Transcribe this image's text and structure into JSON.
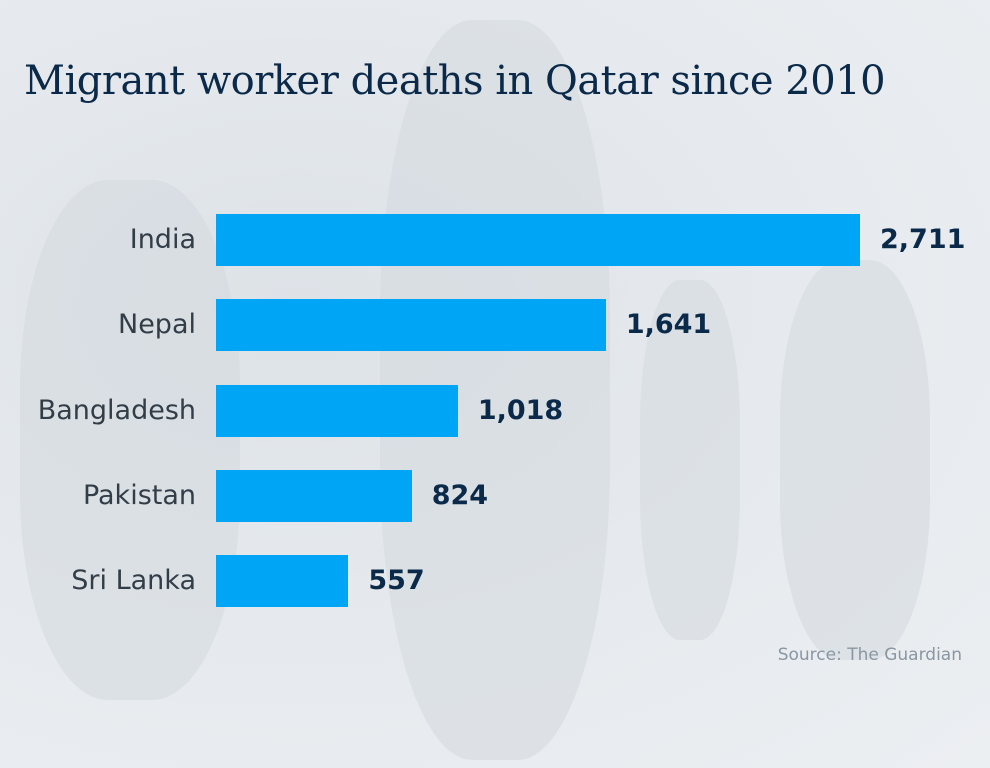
{
  "chart_data": {
    "type": "bar",
    "orientation": "horizontal",
    "title": "Migrant worker deaths in Qatar since 2010",
    "categories": [
      "India",
      "Nepal",
      "Bangladesh",
      "Pakistan",
      "Sri Lanka"
    ],
    "values": [
      2711,
      1641,
      1018,
      824,
      557
    ],
    "value_labels": [
      "2,711",
      "1,641",
      "1,018",
      "824",
      "557"
    ],
    "bar_color": "#00a5f5",
    "title_color": "#0b2a4a",
    "grid": false,
    "source": "Source: The Guardian"
  }
}
